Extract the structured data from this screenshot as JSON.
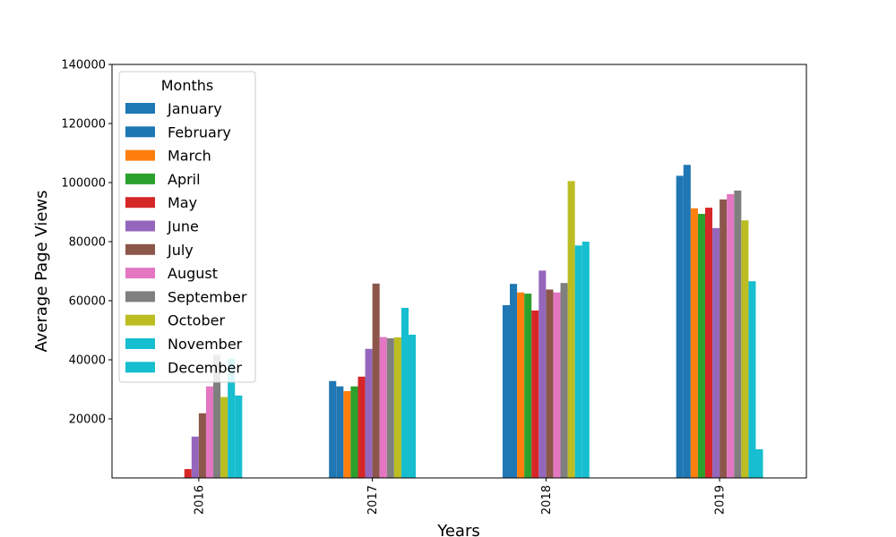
{
  "chart_data": {
    "type": "bar",
    "title": "",
    "xlabel": "Years",
    "ylabel": "Average Page Views",
    "categories": [
      "2016",
      "2017",
      "2018",
      "2019"
    ],
    "ylim": [
      0,
      140000
    ],
    "yticks": [
      20000,
      40000,
      60000,
      80000,
      100000,
      120000,
      140000
    ],
    "grid": false,
    "legend": {
      "title": "Months",
      "placement": "top-left"
    },
    "series": [
      {
        "name": "January",
        "color": "#1f77b4",
        "values": [
          null,
          32800,
          58500,
          102300
        ]
      },
      {
        "name": "February",
        "color": "#1f77b4",
        "values": [
          null,
          31000,
          65700,
          106000
        ]
      },
      {
        "name": "March",
        "color": "#ff7f0e",
        "values": [
          null,
          29400,
          62800,
          91300
        ]
      },
      {
        "name": "April",
        "color": "#2ca02c",
        "values": [
          null,
          31000,
          62400,
          89400
        ]
      },
      {
        "name": "May",
        "color": "#d62728",
        "values": [
          3000,
          34300,
          56700,
          91500
        ]
      },
      {
        "name": "June",
        "color": "#9467bd",
        "values": [
          14000,
          43700,
          70200,
          84600
        ]
      },
      {
        "name": "July",
        "color": "#8c564b",
        "values": [
          21900,
          65800,
          63800,
          94300
        ]
      },
      {
        "name": "August",
        "color": "#e377c2",
        "values": [
          31000,
          47700,
          62800,
          96100
        ]
      },
      {
        "name": "September",
        "color": "#7f7f7f",
        "values": [
          41700,
          47300,
          66000,
          97300
        ]
      },
      {
        "name": "October",
        "color": "#bcbd22",
        "values": [
          27400,
          47600,
          100500,
          87200
        ]
      },
      {
        "name": "November",
        "color": "#17becf",
        "values": [
          40400,
          57600,
          78700,
          66600
        ]
      },
      {
        "name": "December",
        "color": "#17becf",
        "values": [
          27900,
          48500,
          80000,
          9700
        ]
      }
    ]
  }
}
